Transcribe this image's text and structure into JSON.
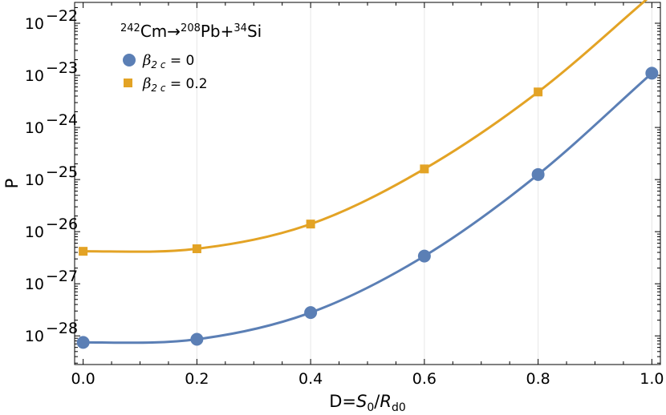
{
  "chart_data": {
    "type": "line",
    "title": {
      "parent_mass": "242",
      "parent_symbol": "Cm",
      "arrow": "→",
      "heavy_mass": "208",
      "heavy_symbol": "Pb",
      "plus": "+",
      "light_mass": "34",
      "light_symbol": "Si"
    },
    "ylabel": "P",
    "xlabel": {
      "prefix": "D=",
      "s": "S",
      "s_sub": "0",
      "slash": "/",
      "r": "R",
      "r_sub": "d0"
    },
    "xlim": [
      -0.015,
      1.015
    ],
    "ylim_log10": [
      -28.55,
      -21.6
    ],
    "y_scale": "log",
    "grid": "vertical",
    "legend_position": "top-left",
    "x_ticks": [
      0.0,
      0.2,
      0.4,
      0.6,
      0.8,
      1.0
    ],
    "x_tick_labels": [
      "0.0",
      "0.2",
      "0.4",
      "0.6",
      "0.8",
      "1.0"
    ],
    "y_ticks_exp": [
      -28,
      -27,
      -26,
      -25,
      -24,
      -23,
      -22
    ],
    "y_tick_base": "10",
    "y_tick_exponents": [
      "−28",
      "−27",
      "−26",
      "−25",
      "−24",
      "−23",
      "−22"
    ],
    "x": [
      0.0,
      0.2,
      0.4,
      0.6,
      0.8,
      1.0
    ],
    "series": [
      {
        "symbol": "β",
        "sub": "2 c",
        "rest": " = 0",
        "marker": "circle",
        "color": "#5b7fb5",
        "values": [
          7.5e-29,
          8.6e-29,
          2.8e-28,
          3.4e-27,
          1.25e-25,
          1.1e-23
        ]
      },
      {
        "symbol": "β",
        "sub": "2 c",
        "rest": " = 0.2",
        "marker": "square",
        "color": "#e3a325",
        "values": [
          4.2e-27,
          4.7e-27,
          1.4e-26,
          1.6e-25,
          4.8e-24,
          3.5e-22
        ]
      }
    ]
  }
}
